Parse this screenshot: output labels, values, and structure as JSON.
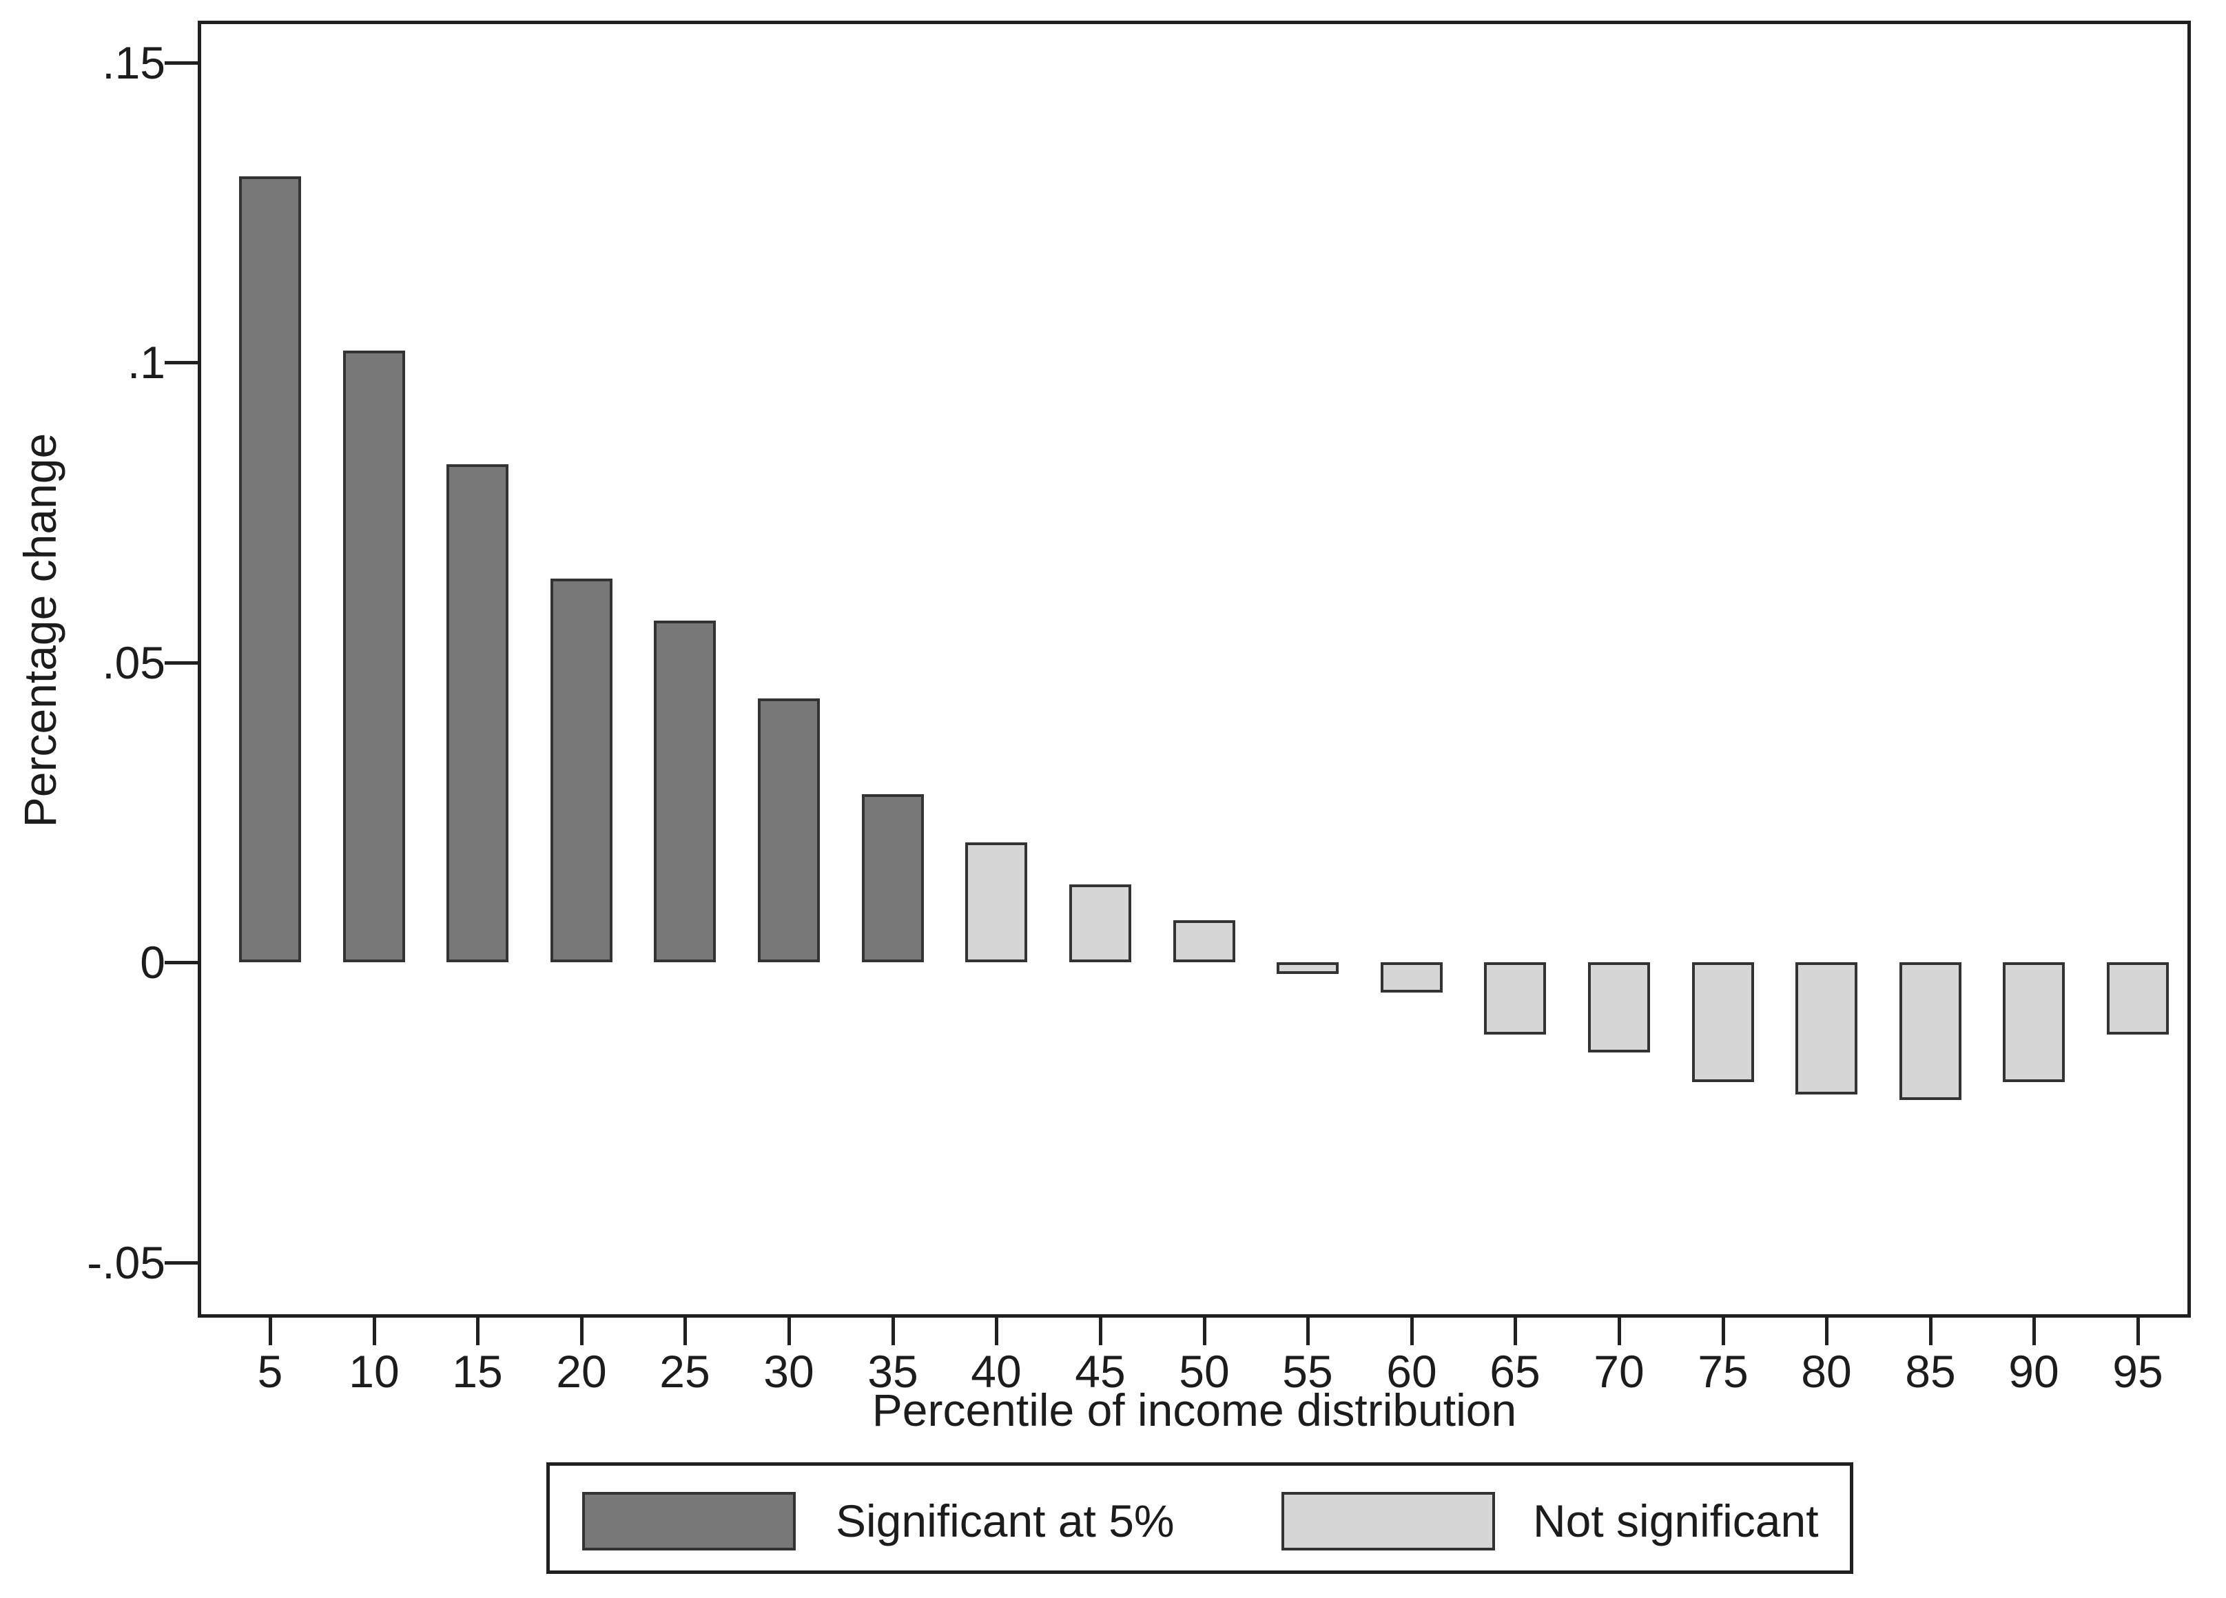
{
  "chart_data": {
    "type": "bar",
    "title": "",
    "xlabel": "Percentile of income distribution",
    "ylabel": "Percentage change",
    "categories": [
      5,
      10,
      15,
      20,
      25,
      30,
      35,
      40,
      45,
      50,
      55,
      60,
      65,
      70,
      75,
      80,
      85,
      90,
      95
    ],
    "values": [
      0.131,
      0.102,
      0.083,
      0.064,
      0.057,
      0.044,
      0.028,
      0.02,
      0.013,
      0.007,
      -0.002,
      -0.005,
      -0.012,
      -0.015,
      -0.02,
      -0.022,
      -0.023,
      -0.02,
      -0.012
    ],
    "significant": [
      true,
      true,
      true,
      true,
      true,
      true,
      true,
      false,
      false,
      false,
      false,
      false,
      false,
      false,
      false,
      false,
      false,
      false,
      false
    ],
    "series": [
      {
        "name": "Significant at 5%",
        "categories": [
          5,
          10,
          15,
          20,
          25,
          30,
          35
        ],
        "values": [
          0.131,
          0.102,
          0.083,
          0.064,
          0.057,
          0.044,
          0.028
        ]
      },
      {
        "name": "Not significant",
        "categories": [
          40,
          45,
          50,
          55,
          60,
          65,
          70,
          75,
          80,
          85,
          90,
          95
        ],
        "values": [
          0.02,
          0.013,
          0.007,
          -0.002,
          -0.005,
          -0.012,
          -0.015,
          -0.02,
          -0.022,
          -0.023,
          -0.02,
          -0.012
        ]
      }
    ],
    "y_ticks": [
      {
        "label": ".15",
        "value": 0.15
      },
      {
        "label": ".1",
        "value": 0.1
      },
      {
        "label": ".05",
        "value": 0.05
      },
      {
        "label": "0",
        "value": 0
      },
      {
        "label": "-.05",
        "value": -0.05
      }
    ],
    "ylim": [
      -0.059,
      0.157
    ],
    "grid": false,
    "legend_position": "bottom-center",
    "legend": [
      {
        "label": "Significant at 5%",
        "color_key": "significant"
      },
      {
        "label": "Not significant",
        "color_key": "not_significant"
      }
    ],
    "colors": {
      "significant": "#787878",
      "not_significant": "#d6d6d6",
      "bar_border": "#333333",
      "axis": "#202020",
      "background": "#ffffff"
    }
  }
}
